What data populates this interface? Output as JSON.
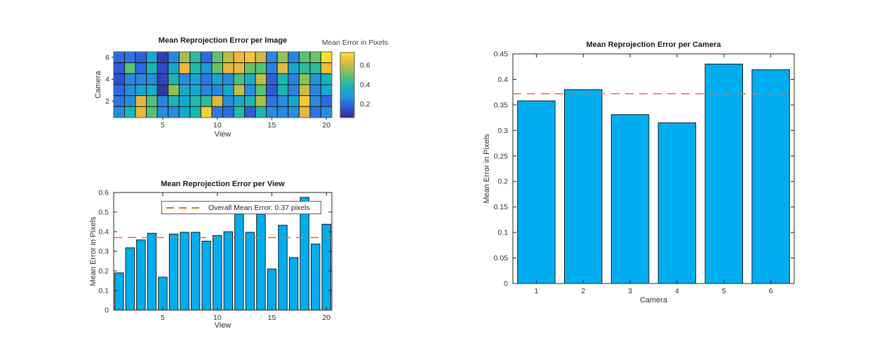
{
  "colors": {
    "background": "#ffffff",
    "bar_fill": "#00aeef",
    "bar_edge": "#1a1a1a",
    "axis": "#262626",
    "tick_text": "#2e2e2e",
    "mean_line": "#e2703a",
    "legend_border": "#5c5c5c",
    "heatmap_cell_border": "#1f1f1f"
  },
  "chart_data": [
    {
      "id": "heatmap",
      "type": "heatmap",
      "title": "Mean Reprojection Error per Image",
      "xlabel": "View",
      "ylabel": "Camera",
      "x_ticks": [
        5,
        10,
        15,
        20
      ],
      "y_ticks": [
        2,
        4,
        6
      ],
      "n_views": 20,
      "cameras_top_to_bottom": [
        6,
        5,
        4,
        3,
        2,
        1
      ],
      "values": [
        [
          0.2,
          0.22,
          0.18,
          0.33,
          0.11,
          0.25,
          0.56,
          0.42,
          0.2,
          0.49,
          0.59,
          0.65,
          0.67,
          0.61,
          0.25,
          0.55,
          0.25,
          0.48,
          0.5,
          0.72
        ],
        [
          0.17,
          0.48,
          0.2,
          0.38,
          0.14,
          0.33,
          0.65,
          0.4,
          0.28,
          0.5,
          0.64,
          0.64,
          0.5,
          0.48,
          0.24,
          0.64,
          0.33,
          0.42,
          0.42,
          0.66
        ],
        [
          0.15,
          0.25,
          0.25,
          0.26,
          0.12,
          0.38,
          0.26,
          0.32,
          0.22,
          0.32,
          0.26,
          0.46,
          0.35,
          0.6,
          0.18,
          0.38,
          0.24,
          0.54,
          0.27,
          0.37
        ],
        [
          0.2,
          0.26,
          0.33,
          0.34,
          0.09,
          0.55,
          0.33,
          0.33,
          0.25,
          0.25,
          0.33,
          0.6,
          0.26,
          0.48,
          0.17,
          0.38,
          0.24,
          0.61,
          0.25,
          0.33
        ],
        [
          0.22,
          0.26,
          0.63,
          0.48,
          0.24,
          0.38,
          0.33,
          0.4,
          0.43,
          0.63,
          0.26,
          0.34,
          0.38,
          0.57,
          0.22,
          0.26,
          0.33,
          0.68,
          0.26,
          0.2
        ],
        [
          0.26,
          0.38,
          0.64,
          0.48,
          0.26,
          0.26,
          0.33,
          0.38,
          0.69,
          0.23,
          0.2,
          0.4,
          0.18,
          0.38,
          0.26,
          0.25,
          0.26,
          0.64,
          0.22,
          0.26
        ]
      ],
      "colorbar": {
        "title": "Mean Error in Pixels",
        "ticks": [
          0.2,
          0.4,
          0.6
        ],
        "vmin": 0.06,
        "vmax": 0.73,
        "colormap": "parula"
      }
    },
    {
      "id": "view_errors",
      "type": "bar",
      "title": "Mean Reprojection Error per View",
      "xlabel": "View",
      "ylabel": "Mean Error in Pixels",
      "categories": [
        1,
        2,
        3,
        4,
        5,
        6,
        7,
        8,
        9,
        10,
        11,
        12,
        13,
        14,
        15,
        16,
        17,
        18,
        19,
        20
      ],
      "values": [
        0.19,
        0.318,
        0.358,
        0.392,
        0.168,
        0.388,
        0.397,
        0.397,
        0.352,
        0.38,
        0.4,
        0.49,
        0.397,
        0.49,
        0.21,
        0.433,
        0.268,
        0.575,
        0.337,
        0.438
      ],
      "x_ticks": [
        5,
        10,
        15,
        20
      ],
      "y_ticks": [
        0,
        0.1,
        0.2,
        0.3,
        0.4,
        0.5,
        0.6
      ],
      "ylim": [
        0,
        0.6
      ],
      "grid": false,
      "legend_position": "upper-center",
      "mean_line": {
        "value": 0.37,
        "label": "Overall Mean Error: 0.37 pixels"
      }
    },
    {
      "id": "camera_errors",
      "type": "bar",
      "title": "Mean Reprojection Error per Camera",
      "xlabel": "Camera",
      "ylabel": "Mean Error in Pixels",
      "categories": [
        1,
        2,
        3,
        4,
        5,
        6
      ],
      "values": [
        0.358,
        0.38,
        0.331,
        0.315,
        0.43,
        0.419
      ],
      "x_ticks": [
        1,
        2,
        3,
        4,
        5,
        6
      ],
      "y_ticks": [
        0,
        0.05,
        0.1,
        0.15,
        0.2,
        0.25,
        0.3,
        0.35,
        0.4,
        0.45
      ],
      "ylim": [
        0,
        0.45
      ],
      "grid": false,
      "mean_line": {
        "value": 0.372
      }
    }
  ]
}
